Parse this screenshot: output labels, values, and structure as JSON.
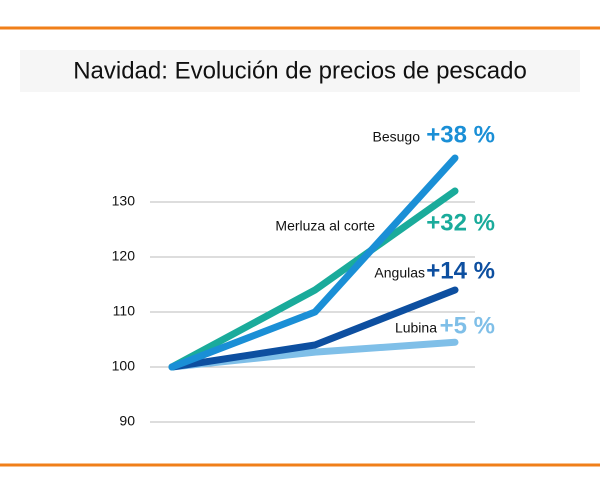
{
  "chart_data": {
    "type": "line",
    "title": "Navidad: Evolución de precios de pescado",
    "categories": [
      null,
      null,
      null
    ],
    "series": [
      {
        "name": "Besugo",
        "change": "+38 %",
        "color": "#1a8fd6",
        "values": [
          100,
          110,
          138
        ]
      },
      {
        "name": "Merluza al corte",
        "change": "+32 %",
        "color": "#1aab9b",
        "values": [
          100,
          114,
          132
        ]
      },
      {
        "name": "Angulas",
        "change": "+14 %",
        "color": "#0d4fa0",
        "values": [
          100,
          104,
          114
        ]
      },
      {
        "name": "Lubina",
        "change": "+5 %",
        "color": "#7fbfe8",
        "values": [
          100,
          102.7,
          104.5
        ]
      }
    ],
    "ylim": [
      90,
      140
    ],
    "yticks": [
      90,
      100,
      110,
      120,
      130
    ],
    "grid": true
  }
}
